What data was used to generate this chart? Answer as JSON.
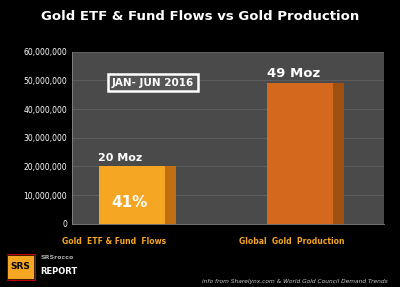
{
  "title": "Gold ETF & Fund Flows vs Gold Production",
  "categories": [
    "Gold  ETF & Fund  Flows",
    "Global  Gold  Production"
  ],
  "values": [
    20000000,
    49000000
  ],
  "bar_color_front_1": "#F5A623",
  "bar_color_front_2": "#D4691E",
  "bar_color_side_1": "#C07010",
  "bar_color_side_2": "#A05010",
  "bar_color_top_1": "#E8921A",
  "bar_color_top_2": "#C86015",
  "ylim": [
    0,
    60000000
  ],
  "yticks": [
    0,
    10000000,
    20000000,
    30000000,
    40000000,
    50000000,
    60000000
  ],
  "bar_labels": [
    "20 Moz",
    "49 Moz"
  ],
  "pct_label": "41%",
  "annotation_box": "JAN- JUN 2016",
  "background_color": "#000000",
  "plot_bg_color": "#4a4a4a",
  "title_color": "#ffffff",
  "footer_text": "info from Sharelynx.com & World Gold Council Demand Trends",
  "footer_color": "#cccccc",
  "cat_label_color": "#F5A623",
  "grid_color": "#666666",
  "ytick_color": "#ffffff",
  "logo_bg": "#000000",
  "logo_box_color": "#F5A623"
}
